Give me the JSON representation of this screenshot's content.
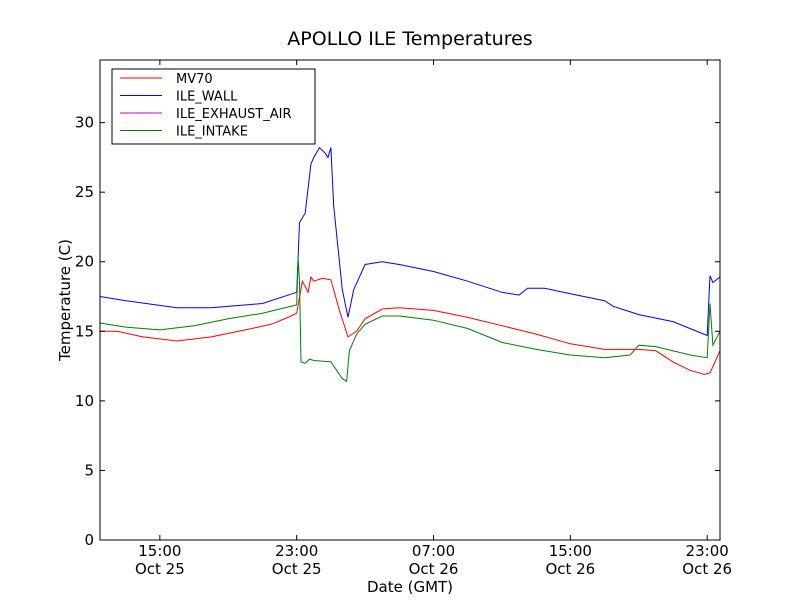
{
  "chart_data": {
    "type": "line",
    "title": "APOLLO ILE Temperatures",
    "xlabel": "Date (GMT)",
    "ylabel": "Temperature (C)",
    "xlim": [
      "2024-10-25T11:30",
      "2024-10-26T23:45"
    ],
    "ylim": [
      0,
      34.5
    ],
    "yticks": [
      0,
      5,
      10,
      15,
      20,
      25,
      30
    ],
    "xticks": [
      {
        "x": "2024-10-25T15:00",
        "time": "15:00",
        "date": "Oct 25"
      },
      {
        "x": "2024-10-25T23:00",
        "time": "23:00",
        "date": "Oct 25"
      },
      {
        "x": "2024-10-26T07:00",
        "time": "07:00",
        "date": "Oct 26"
      },
      {
        "x": "2024-10-26T15:00",
        "time": "15:00",
        "date": "Oct 26"
      },
      {
        "x": "2024-10-26T23:00",
        "time": "23:00",
        "date": "Oct 26"
      }
    ],
    "legend": "top-left",
    "series": [
      {
        "name": "MV70",
        "color": "#ff0000",
        "x": [
          "2024-10-25T11:30",
          "2024-10-25T12:30",
          "2024-10-25T14:00",
          "2024-10-25T16:00",
          "2024-10-25T18:00",
          "2024-10-25T20:00",
          "2024-10-25T21:30",
          "2024-10-25T22:30",
          "2024-10-25T23:00",
          "2024-10-25T23:20",
          "2024-10-25T23:40",
          "2024-10-25T23:50",
          "2024-10-26T00:00",
          "2024-10-26T00:30",
          "2024-10-26T01:00",
          "2024-10-26T01:30",
          "2024-10-26T02:00",
          "2024-10-26T02:30",
          "2024-10-26T03:00",
          "2024-10-26T04:00",
          "2024-10-26T05:00",
          "2024-10-26T07:00",
          "2024-10-26T09:00",
          "2024-10-26T11:00",
          "2024-10-26T13:00",
          "2024-10-26T15:00",
          "2024-10-26T17:00",
          "2024-10-26T19:00",
          "2024-10-26T20:00",
          "2024-10-26T21:00",
          "2024-10-26T22:00",
          "2024-10-26T22:50",
          "2024-10-26T23:10",
          "2024-10-26T23:45"
        ],
        "y": [
          15.0,
          15.0,
          14.6,
          14.3,
          14.6,
          15.1,
          15.5,
          16.0,
          16.3,
          18.6,
          17.8,
          18.9,
          18.6,
          18.8,
          18.7,
          16.5,
          14.6,
          15.0,
          15.9,
          16.6,
          16.7,
          16.5,
          16.0,
          15.4,
          14.8,
          14.1,
          13.7,
          13.7,
          13.6,
          12.8,
          12.2,
          11.9,
          12.0,
          13.6
        ]
      },
      {
        "name": "ILE_WALL",
        "color": "#0000ff",
        "x": [
          "2024-10-25T11:30",
          "2024-10-25T13:00",
          "2024-10-25T16:00",
          "2024-10-25T18:00",
          "2024-10-25T21:00",
          "2024-10-25T23:00",
          "2024-10-25T23:10",
          "2024-10-25T23:30",
          "2024-10-25T23:50",
          "2024-10-26T00:00",
          "2024-10-26T00:20",
          "2024-10-26T00:40",
          "2024-10-26T00:50",
          "2024-10-26T01:00",
          "2024-10-26T01:10",
          "2024-10-26T01:40",
          "2024-10-26T02:00",
          "2024-10-26T02:20",
          "2024-10-26T03:00",
          "2024-10-26T04:00",
          "2024-10-26T05:00",
          "2024-10-26T07:00",
          "2024-10-26T09:00",
          "2024-10-26T11:00",
          "2024-10-26T12:00",
          "2024-10-26T12:30",
          "2024-10-26T13:30",
          "2024-10-26T15:00",
          "2024-10-26T17:00",
          "2024-10-26T17:30",
          "2024-10-26T19:00",
          "2024-10-26T21:00",
          "2024-10-26T23:00",
          "2024-10-26T23:10",
          "2024-10-26T23:20",
          "2024-10-26T23:45"
        ],
        "y": [
          17.5,
          17.2,
          16.7,
          16.7,
          17.0,
          17.8,
          22.8,
          23.5,
          27.0,
          27.5,
          28.2,
          27.8,
          27.5,
          28.2,
          24.0,
          18.0,
          16.0,
          18.0,
          19.8,
          20.0,
          19.8,
          19.3,
          18.6,
          17.8,
          17.6,
          18.1,
          18.1,
          17.7,
          17.2,
          16.8,
          16.2,
          15.7,
          14.7,
          19.0,
          18.5,
          18.9
        ]
      },
      {
        "name": "ILE_EXHAUST_AIR",
        "color": "#bf00bf",
        "x": [],
        "y": []
      },
      {
        "name": "ILE_INTAKE",
        "color": "#008000",
        "x": [
          "2024-10-25T11:30",
          "2024-10-25T13:00",
          "2024-10-25T15:00",
          "2024-10-25T17:00",
          "2024-10-25T19:00",
          "2024-10-25T21:00",
          "2024-10-25T23:00",
          "2024-10-25T23:05",
          "2024-10-25T23:10",
          "2024-10-25T23:15",
          "2024-10-25T23:30",
          "2024-10-25T23:45",
          "2024-10-26T00:00",
          "2024-10-26T01:00",
          "2024-10-26T01:20",
          "2024-10-26T01:40",
          "2024-10-26T01:55",
          "2024-10-26T02:05",
          "2024-10-26T02:30",
          "2024-10-26T03:00",
          "2024-10-26T04:00",
          "2024-10-26T05:00",
          "2024-10-26T07:00",
          "2024-10-26T09:00",
          "2024-10-26T11:00",
          "2024-10-26T13:00",
          "2024-10-26T15:00",
          "2024-10-26T17:00",
          "2024-10-26T18:30",
          "2024-10-26T19:00",
          "2024-10-26T20:00",
          "2024-10-26T22:00",
          "2024-10-26T23:00",
          "2024-10-26T23:10",
          "2024-10-26T23:20",
          "2024-10-26T23:45"
        ],
        "y": [
          15.6,
          15.3,
          15.1,
          15.4,
          15.9,
          16.3,
          16.9,
          20.3,
          18.5,
          12.8,
          12.7,
          13.0,
          12.9,
          12.8,
          12.2,
          11.6,
          11.4,
          13.6,
          14.8,
          15.5,
          16.1,
          16.1,
          15.8,
          15.2,
          14.2,
          13.7,
          13.3,
          13.1,
          13.3,
          14.0,
          13.9,
          13.3,
          13.1,
          17.0,
          14.0,
          15.0
        ]
      }
    ]
  }
}
